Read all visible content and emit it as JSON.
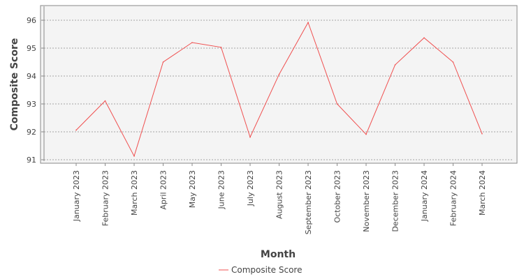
{
  "chart_data": {
    "type": "line",
    "title": "",
    "xlabel": "Month",
    "ylabel": "Composite Score",
    "categories": [
      "January 2023",
      "February 2023",
      "March 2023",
      "April 2023",
      "May 2023",
      "June 2023",
      "July 2023",
      "August 2023",
      "September 2023",
      "October 2023",
      "November 2023",
      "December 2023",
      "January 2024",
      "February 2024",
      "March 2024"
    ],
    "series": [
      {
        "name": "Composite Score",
        "color": "#f05050",
        "values": [
          92.06,
          93.11,
          91.13,
          94.5,
          95.2,
          95.03,
          91.81,
          94.06,
          95.92,
          93.0,
          91.91,
          94.4,
          95.37,
          94.5,
          91.93
        ]
      }
    ],
    "ylim": [
      90.95,
      96.5
    ],
    "yticks": [
      91,
      92,
      93,
      94,
      95,
      96
    ],
    "grid": true,
    "legend": "bottom-center",
    "plot_background": "#f4f4f4",
    "grid_color": "#888888"
  }
}
